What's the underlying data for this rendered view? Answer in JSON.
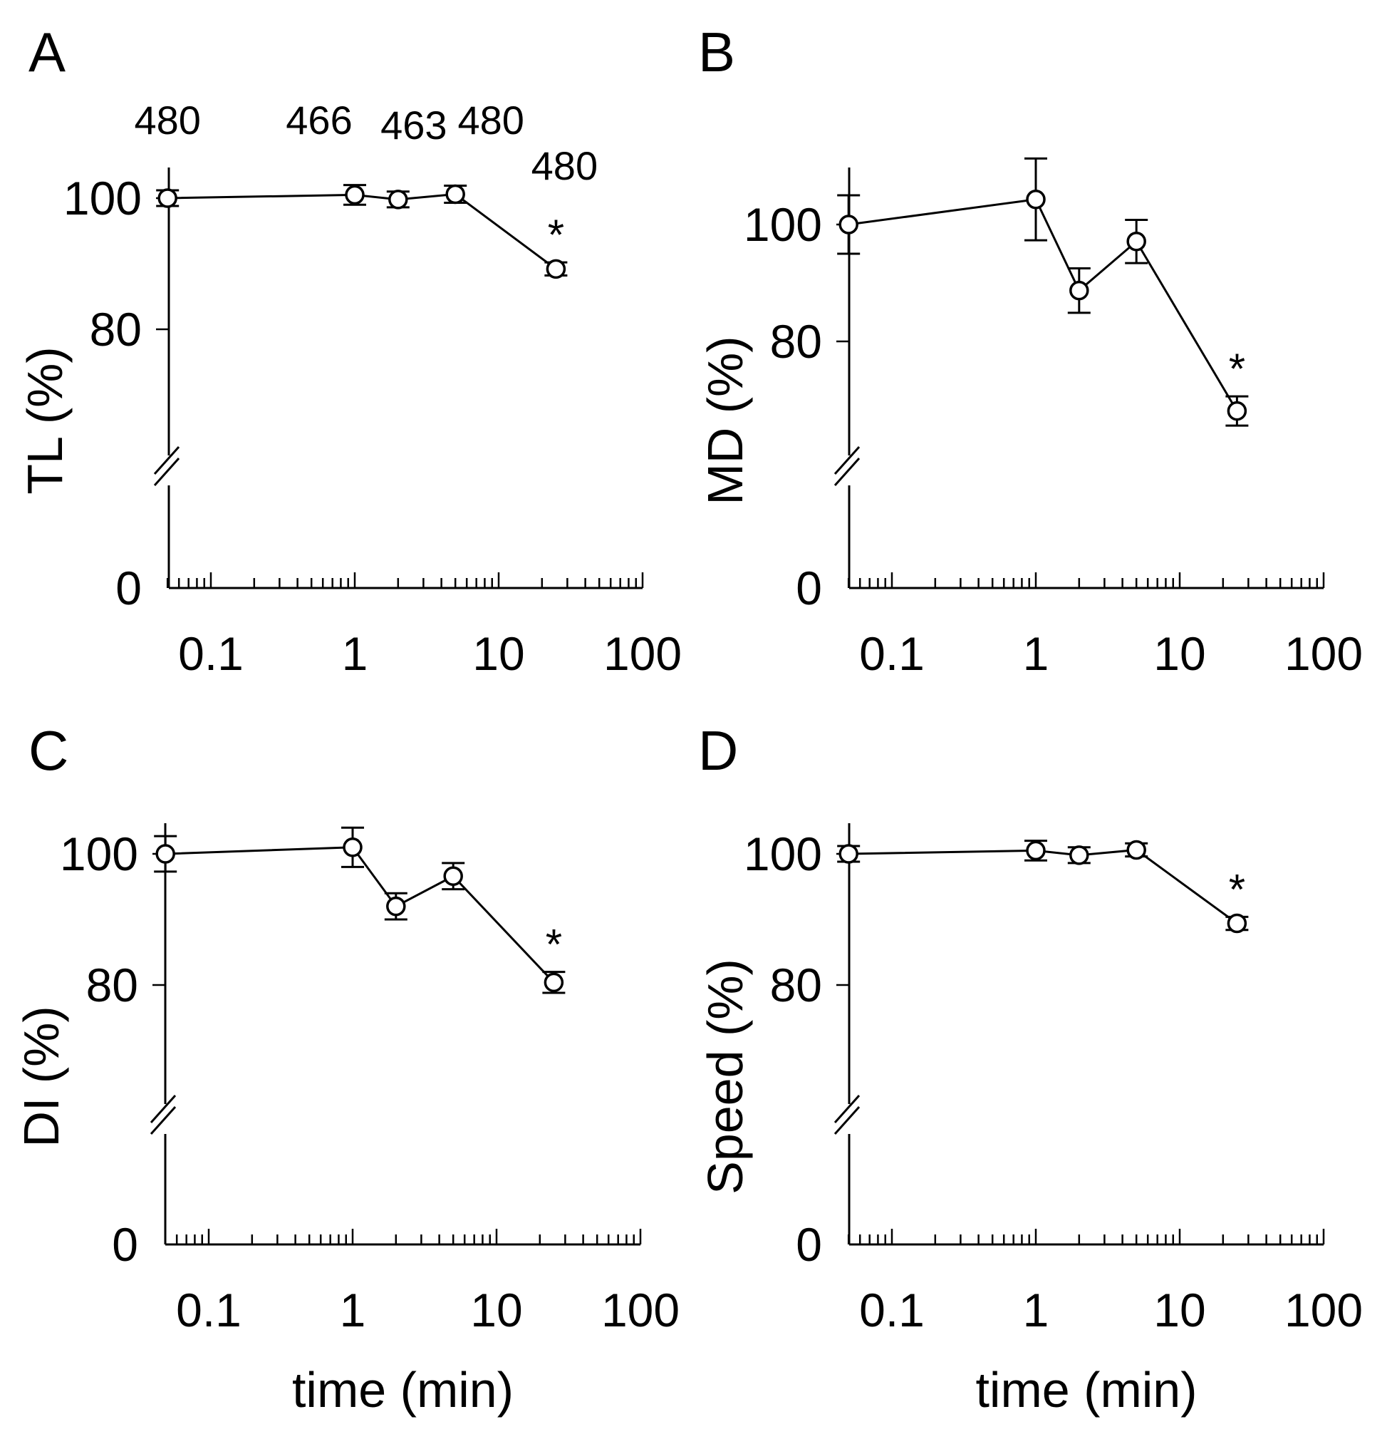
{
  "chart_data": [
    {
      "type": "line",
      "panel": "A",
      "ylabel": "TL (%)",
      "xlabel": "",
      "xscale": "log",
      "xlim": [
        0.05,
        100
      ],
      "ylim_broken": [
        0,
        60,
        105
      ],
      "yticks": [
        {
          "value": 0,
          "label": "0"
        },
        {
          "value": 80,
          "label": "80"
        },
        {
          "value": 100,
          "label": "100"
        }
      ],
      "xticks": [
        {
          "value": 0.1,
          "label": "0.1"
        },
        {
          "value": 1,
          "label": "1"
        },
        {
          "value": 10,
          "label": "10"
        },
        {
          "value": 100,
          "label": "100"
        }
      ],
      "x": [
        0.05,
        1,
        2,
        5,
        25
      ],
      "y": [
        100,
        100.5,
        99.8,
        100.6,
        89.2
      ],
      "yerr": [
        1.2,
        1.5,
        1.2,
        1.3,
        1.0
      ],
      "counts": [
        {
          "x": 0.05,
          "label": "480"
        },
        {
          "x": 1,
          "label": "466"
        },
        {
          "x": 2,
          "label": "463"
        },
        {
          "x": 5,
          "label": "480"
        },
        {
          "x": 25,
          "label": "480"
        }
      ],
      "significance": [
        {
          "x": 25,
          "label": "*"
        }
      ]
    },
    {
      "type": "line",
      "panel": "B",
      "ylabel": "MD (%)",
      "xlabel": "",
      "xscale": "log",
      "xlim": [
        0.05,
        100
      ],
      "ylim_broken": [
        0,
        60,
        110
      ],
      "yticks": [
        {
          "value": 0,
          "label": "0"
        },
        {
          "value": 80,
          "label": "80"
        },
        {
          "value": 100,
          "label": "100"
        }
      ],
      "xticks": [
        {
          "value": 0.1,
          "label": "0.1"
        },
        {
          "value": 1,
          "label": "1"
        },
        {
          "value": 10,
          "label": "10"
        },
        {
          "value": 100,
          "label": "100"
        }
      ],
      "x": [
        0.05,
        1,
        2,
        5,
        25
      ],
      "y": [
        100,
        104.3,
        88.7,
        97.1,
        68.1
      ],
      "yerr": [
        5.0,
        7.0,
        3.8,
        3.7,
        2.5
      ],
      "counts": [],
      "significance": [
        {
          "x": 25,
          "label": "*"
        }
      ]
    },
    {
      "type": "line",
      "panel": "C",
      "ylabel": "DI (%)",
      "xlabel": "time (min)",
      "xscale": "log",
      "xlim": [
        0.05,
        100
      ],
      "ylim_broken": [
        0,
        60,
        105
      ],
      "yticks": [
        {
          "value": 0,
          "label": "0"
        },
        {
          "value": 80,
          "label": "80"
        },
        {
          "value": 100,
          "label": "100"
        }
      ],
      "xticks": [
        {
          "value": 0.1,
          "label": "0.1"
        },
        {
          "value": 1,
          "label": "1"
        },
        {
          "value": 10,
          "label": "10"
        },
        {
          "value": 100,
          "label": "100"
        }
      ],
      "x": [
        0.05,
        1,
        2,
        5,
        25
      ],
      "y": [
        100,
        101,
        92,
        96.6,
        80.4
      ],
      "yerr": [
        2.7,
        3.0,
        2.0,
        2.0,
        1.6
      ],
      "counts": [],
      "significance": [
        {
          "x": 25,
          "label": "*"
        }
      ]
    },
    {
      "type": "line",
      "panel": "D",
      "ylabel": "Speed (%)",
      "xlabel": "time (min)",
      "xscale": "log",
      "xlim": [
        0.05,
        100
      ],
      "ylim_broken": [
        0,
        60,
        105
      ],
      "yticks": [
        {
          "value": 0,
          "label": "0"
        },
        {
          "value": 80,
          "label": "80"
        },
        {
          "value": 100,
          "label": "100"
        }
      ],
      "xticks": [
        {
          "value": 0.1,
          "label": "0.1"
        },
        {
          "value": 1,
          "label": "1"
        },
        {
          "value": 10,
          "label": "10"
        },
        {
          "value": 100,
          "label": "100"
        }
      ],
      "x": [
        0.05,
        1,
        2,
        5,
        25
      ],
      "y": [
        100,
        100.5,
        99.8,
        100.6,
        89.4
      ],
      "yerr": [
        1.2,
        1.5,
        1.2,
        1.0,
        1.0
      ],
      "counts": [],
      "significance": [
        {
          "x": 25,
          "label": "*"
        }
      ]
    }
  ]
}
